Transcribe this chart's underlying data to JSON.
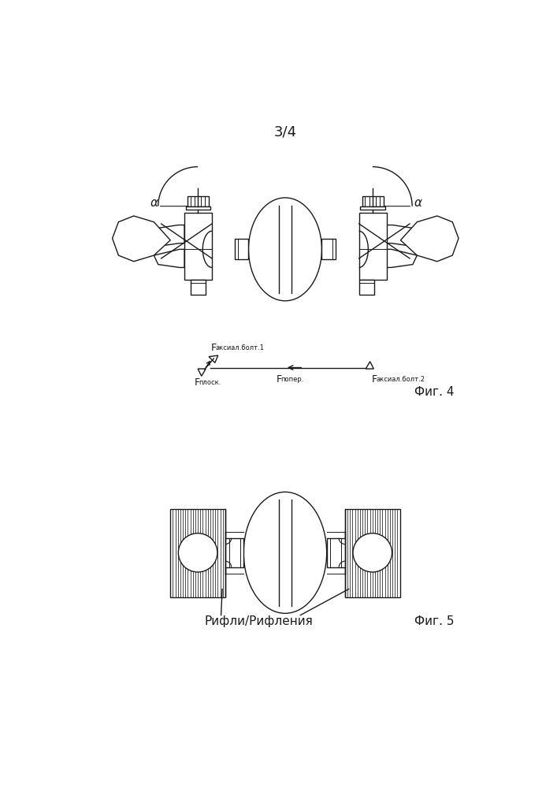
{
  "title": "3/4",
  "fig4_label": "Фиг. 4",
  "fig5_label": "Фиг. 5",
  "label_faксиал1": "F",
  "label_faксиал1_sub": "аксиал.болт.1",
  "label_fплоск": "F",
  "label_fплоск_sub": "плоск.",
  "label_fпопер": "F",
  "label_fпопер_sub": "попер.",
  "label_faксиал2": "F",
  "label_faксиал2_sub": "аксиал.болт.2",
  "label_rifli": "Рифли/Рифления",
  "line_color": "#1a1a1a",
  "bg_color": "#ffffff",
  "alpha_label": "α"
}
